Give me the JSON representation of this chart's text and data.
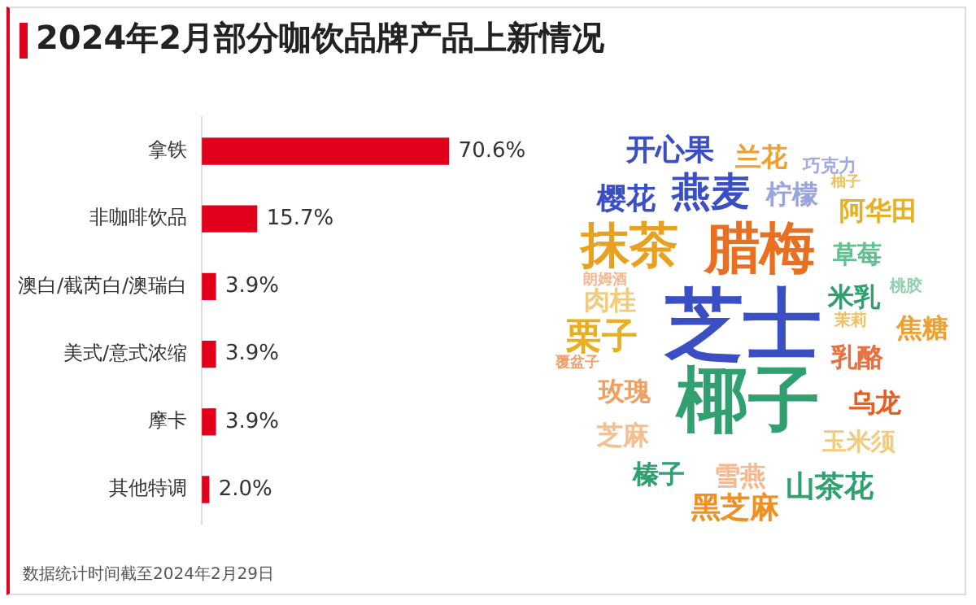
{
  "chart_data": [
    {
      "type": "bar",
      "orientation": "horizontal",
      "title": "2024年2月部分咖饮品牌产品上新情况",
      "categories": [
        "拿铁",
        "非咖啡饮品",
        "澳白/截芮白/澳瑞白",
        "美式/意式浓缩",
        "摩卡",
        "其他特调"
      ],
      "values": [
        70.6,
        15.7,
        3.9,
        3.9,
        3.9,
        2.0
      ],
      "value_labels": [
        "70.6%",
        "15.7%",
        "3.9%",
        "3.9%",
        "3.9%",
        "2.0%"
      ],
      "color": "#e0001b",
      "legend": false,
      "grid": false,
      "tick_labels": "y",
      "annotations": [
        "数据统计时间截至2024年2月29日"
      ]
    },
    {
      "type": "other",
      "annotations": [
        "开心果",
        "兰花",
        "巧克力",
        "燕麦",
        "柠檬",
        "柚子",
        "樱花",
        "阿华田",
        "抹茶",
        "腊梅",
        "草莓",
        "朗姆酒",
        "肉桂",
        "芝士",
        "米乳",
        "桃胶",
        "茉莉",
        "焦糖",
        "栗子",
        "乳酪",
        "覆盆子",
        "玫瑰",
        "椰子",
        "乌龙",
        "芝麻",
        "玉米须",
        "榛子",
        "雪燕",
        "山茶花",
        "黑芝麻"
      ]
    }
  ]
}
